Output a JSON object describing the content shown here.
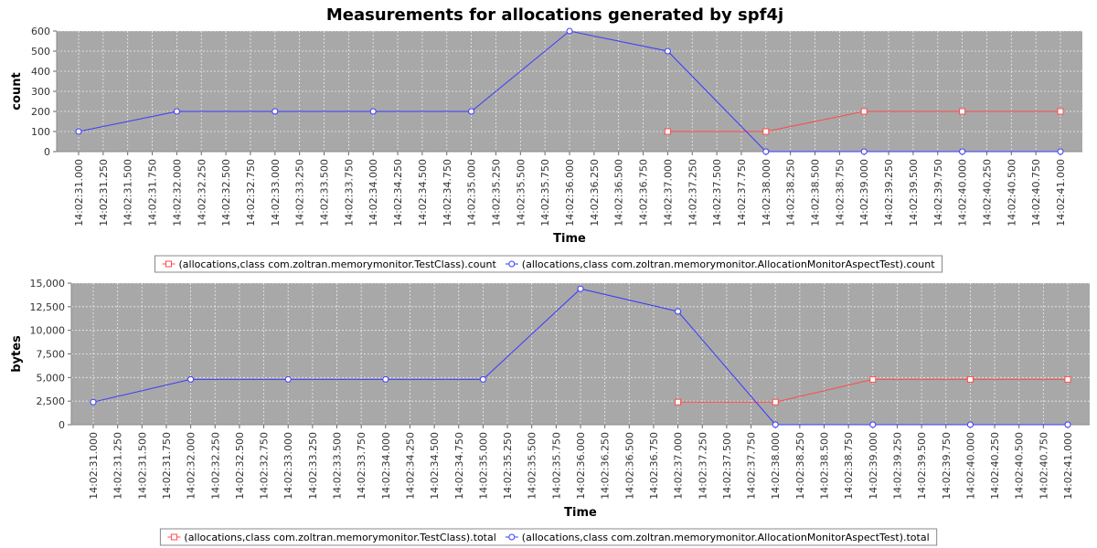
{
  "title": "Measurements for allocations generated by spf4j",
  "colors": {
    "plot_bg": "#a8a8a8",
    "grid": "#ececec",
    "series_red": "#ff4a4a",
    "series_blue": "#3a3aff"
  },
  "chart_data": [
    {
      "type": "line",
      "ylabel": "count",
      "xlabel": "Time",
      "ylim": [
        0,
        600
      ],
      "yticks": [
        0,
        100,
        200,
        300,
        400,
        500,
        600
      ],
      "xlim": [
        "14:02:31.000",
        "14:02:41.000"
      ],
      "xtick_step_seconds": 0.25,
      "xticks": [
        "14:02:31.000",
        "14:02:31.250",
        "14:02:31.500",
        "14:02:31.750",
        "14:02:32.000",
        "14:02:32.250",
        "14:02:32.500",
        "14:02:32.750",
        "14:02:33.000",
        "14:02:33.250",
        "14:02:33.500",
        "14:02:33.750",
        "14:02:34.000",
        "14:02:34.250",
        "14:02:34.500",
        "14:02:34.750",
        "14:02:35.000",
        "14:02:35.250",
        "14:02:35.500",
        "14:02:35.750",
        "14:02:36.000",
        "14:02:36.250",
        "14:02:36.500",
        "14:02:36.750",
        "14:02:37.000",
        "14:02:37.250",
        "14:02:37.500",
        "14:02:37.750",
        "14:02:38.000",
        "14:02:38.250",
        "14:02:38.500",
        "14:02:38.750",
        "14:02:39.000",
        "14:02:39.250",
        "14:02:39.500",
        "14:02:39.750",
        "14:02:40.000",
        "14:02:40.250",
        "14:02:40.500",
        "14:02:40.750",
        "14:02:41.000"
      ],
      "grid": true,
      "legend_position": "bottom",
      "series": [
        {
          "name": "(allocations,class com.zoltran.memorymonitor.TestClass).count",
          "color": "#ff4a4a",
          "marker": "square",
          "x": [
            "14:02:37.000",
            "14:02:38.000",
            "14:02:39.000",
            "14:02:40.000",
            "14:02:41.000"
          ],
          "y": [
            100,
            100,
            200,
            200,
            200
          ]
        },
        {
          "name": "(allocations,class com.zoltran.memorymonitor.AllocationMonitorAspectTest).count",
          "color": "#3a3aff",
          "marker": "circle",
          "x": [
            "14:02:31.000",
            "14:02:32.000",
            "14:02:33.000",
            "14:02:34.000",
            "14:02:35.000",
            "14:02:36.000",
            "14:02:37.000",
            "14:02:38.000",
            "14:02:39.000",
            "14:02:40.000",
            "14:02:41.000"
          ],
          "y": [
            100,
            200,
            200,
            200,
            200,
            600,
            500,
            0,
            0,
            0,
            0
          ]
        }
      ]
    },
    {
      "type": "line",
      "ylabel": "bytes",
      "xlabel": "Time",
      "ylim": [
        0,
        15000
      ],
      "yticks": [
        0,
        2500,
        5000,
        7500,
        10000,
        12500,
        15000
      ],
      "xlim": [
        "14:02:31.000",
        "14:02:41.000"
      ],
      "xtick_step_seconds": 0.25,
      "xticks": [
        "14:02:31.000",
        "14:02:31.250",
        "14:02:31.500",
        "14:02:31.750",
        "14:02:32.000",
        "14:02:32.250",
        "14:02:32.500",
        "14:02:32.750",
        "14:02:33.000",
        "14:02:33.250",
        "14:02:33.500",
        "14:02:33.750",
        "14:02:34.000",
        "14:02:34.250",
        "14:02:34.500",
        "14:02:34.750",
        "14:02:35.000",
        "14:02:35.250",
        "14:02:35.500",
        "14:02:35.750",
        "14:02:36.000",
        "14:02:36.250",
        "14:02:36.500",
        "14:02:36.750",
        "14:02:37.000",
        "14:02:37.250",
        "14:02:37.500",
        "14:02:37.750",
        "14:02:38.000",
        "14:02:38.250",
        "14:02:38.500",
        "14:02:38.750",
        "14:02:39.000",
        "14:02:39.250",
        "14:02:39.500",
        "14:02:39.750",
        "14:02:40.000",
        "14:02:40.250",
        "14:02:40.500",
        "14:02:40.750",
        "14:02:41.000"
      ],
      "grid": true,
      "legend_position": "bottom",
      "series": [
        {
          "name": "(allocations,class com.zoltran.memorymonitor.TestClass).total",
          "color": "#ff4a4a",
          "marker": "square",
          "x": [
            "14:02:37.000",
            "14:02:38.000",
            "14:02:39.000",
            "14:02:40.000",
            "14:02:41.000"
          ],
          "y": [
            2400,
            2400,
            4800,
            4800,
            4800
          ]
        },
        {
          "name": "(allocations,class com.zoltran.memorymonitor.AllocationMonitorAspectTest).total",
          "color": "#3a3aff",
          "marker": "circle",
          "x": [
            "14:02:31.000",
            "14:02:32.000",
            "14:02:33.000",
            "14:02:34.000",
            "14:02:35.000",
            "14:02:36.000",
            "14:02:37.000",
            "14:02:38.000",
            "14:02:39.000",
            "14:02:40.000",
            "14:02:41.000"
          ],
          "y": [
            2400,
            4800,
            4800,
            4800,
            4800,
            14400,
            12000,
            0,
            0,
            0,
            0
          ]
        }
      ]
    }
  ]
}
